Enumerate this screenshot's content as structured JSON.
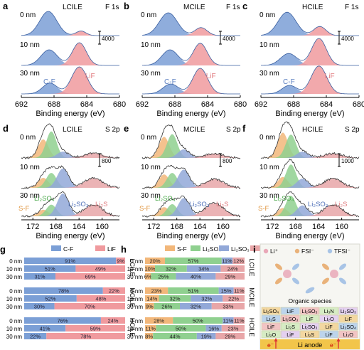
{
  "panels": {
    "a": {
      "letter": "a",
      "sample": "LCILE",
      "core": "F 1s"
    },
    "b": {
      "letter": "b",
      "sample": "MCILE",
      "core": "F 1s"
    },
    "c": {
      "letter": "c",
      "sample": "HCILE",
      "core": "F 1s"
    },
    "d": {
      "letter": "d",
      "sample": "LCILE",
      "core": "S 2p"
    },
    "e": {
      "letter": "e",
      "sample": "MCILE",
      "core": "S 2p"
    },
    "f": {
      "letter": "f",
      "sample": "HCILE",
      "core": "S 2p"
    },
    "g": {
      "letter": "g"
    },
    "h": {
      "letter": "h"
    },
    "i": {
      "letter": "i"
    }
  },
  "depths": [
    "0 nm",
    "10 nm",
    "30 nm"
  ],
  "xps_labels": {
    "xlabel": "Binding energy (eV)",
    "f_ticks": [
      "692",
      "688",
      "684",
      "680"
    ],
    "s_ticks": [
      "172",
      "168",
      "164",
      "160"
    ],
    "f_species": [
      "C-F",
      "LiF"
    ],
    "s_species": [
      "S-F",
      "Li₂SO₄",
      "Li₂SO₃",
      "Li₂S"
    ],
    "scale_f": "4000",
    "scale_s_d": "800",
    "scale_s_e": "800",
    "scale_s_f": "1000"
  },
  "colors": {
    "cf": "#7b9fd6",
    "lif": "#f09a9e",
    "sf": "#f2b77a",
    "so4": "#8fd08f",
    "so3": "#92a8d8",
    "s": "#e8a6a8",
    "env": "#333333"
  },
  "chart_data": [
    {
      "type": "bar",
      "panel": "g",
      "orientation": "horizontal-stacked",
      "legend": [
        "C-F",
        "LiF"
      ],
      "groups": [
        {
          "name": "LCILE",
          "rows": [
            {
              "depth": "0 nm",
              "values": [
                91,
                9
              ],
              "labels": [
                "91%",
                "9%"
              ]
            },
            {
              "depth": "10 nm",
              "values": [
                51,
                49
              ],
              "labels": [
                "51%",
                "49%"
              ]
            },
            {
              "depth": "30 nm",
              "values": [
                31,
                69
              ],
              "labels": [
                "31%",
                "69%"
              ]
            }
          ]
        },
        {
          "name": "MCILE",
          "rows": [
            {
              "depth": "0 nm",
              "values": [
                78,
                22
              ],
              "labels": [
                "78%",
                "22%"
              ]
            },
            {
              "depth": "10 nm",
              "values": [
                52,
                48
              ],
              "labels": [
                "52%",
                "48%"
              ]
            },
            {
              "depth": "30 nm",
              "values": [
                30,
                70
              ],
              "labels": [
                "30%",
                "70%"
              ]
            }
          ]
        },
        {
          "name": "HCILE",
          "rows": [
            {
              "depth": "0 nm",
              "values": [
                76,
                24
              ],
              "labels": [
                "76%",
                "24%"
              ]
            },
            {
              "depth": "10 nm",
              "values": [
                41,
                59
              ],
              "labels": [
                "41%",
                "59%"
              ]
            },
            {
              "depth": "30 nm",
              "values": [
                22,
                78
              ],
              "labels": [
                "22%",
                "78%"
              ]
            }
          ]
        }
      ]
    },
    {
      "type": "bar",
      "panel": "h",
      "orientation": "horizontal-stacked",
      "legend": [
        "S-F",
        "Li₂SO₄",
        "Li₂SO₃",
        "Li₂S"
      ],
      "groups": [
        {
          "name": "LCILE",
          "rows": [
            {
              "depth": "0 nm",
              "values": [
                20,
                57,
                11,
                12
              ],
              "labels": [
                "20%",
                "57%",
                "11%",
                "12%"
              ]
            },
            {
              "depth": "10 nm",
              "values": [
                10,
                32,
                34,
                24
              ],
              "labels": [
                "10%",
                "32%",
                "34%",
                "24%"
              ]
            },
            {
              "depth": "30 nm",
              "values": [
                6,
                25,
                40,
                29
              ],
              "labels": [
                "6%",
                "25%",
                "40%",
                "29%"
              ]
            }
          ]
        },
        {
          "name": "MCILE",
          "rows": [
            {
              "depth": "0 nm",
              "values": [
                23,
                51,
                15,
                11
              ],
              "labels": [
                "23%",
                "51%",
                "15%",
                "11%"
              ]
            },
            {
              "depth": "10 nm",
              "values": [
                14,
                32,
                32,
                22
              ],
              "labels": [
                "14%",
                "32%",
                "32%",
                "22%"
              ]
            },
            {
              "depth": "30 nm",
              "values": [
                9,
                26,
                32,
                33
              ],
              "labels": [
                "9%",
                "26%",
                "32%",
                "33%"
              ]
            }
          ]
        },
        {
          "name": "HCILE",
          "rows": [
            {
              "depth": "0 nm",
              "values": [
                28,
                50,
                11,
                11
              ],
              "labels": [
                "28%",
                "50%",
                "11%",
                "11%"
              ]
            },
            {
              "depth": "10 nm",
              "values": [
                11,
                50,
                16,
                23
              ],
              "labels": [
                "11%",
                "50%",
                "16%",
                "23%"
              ]
            },
            {
              "depth": "30 nm",
              "values": [
                8,
                44,
                19,
                29
              ],
              "labels": [
                "8%",
                "44%",
                "19%",
                "29%"
              ]
            }
          ]
        }
      ]
    }
  ],
  "schematic": {
    "legend": [
      "Li⁺",
      "FSI⁻",
      "TFSI⁻"
    ],
    "organic": "Organic species",
    "anode": "Li anode",
    "electron": "e⁻",
    "sei_rows": [
      [
        "Li₂SO₄",
        "LiF",
        "Li₂SO₃",
        "Li₃N",
        "Li₂SO₃"
      ],
      [
        "Li₂S",
        "Li₂SO₃",
        "LiF",
        "Li₂O",
        "LiF"
      ],
      [
        "LiF",
        "Li₂S",
        "Li₂SO₃",
        "LiF",
        "Li₂SO₄"
      ],
      [
        "Li₂O",
        "LiF",
        "Li₂S",
        "LiF",
        "Li₂O"
      ]
    ]
  }
}
